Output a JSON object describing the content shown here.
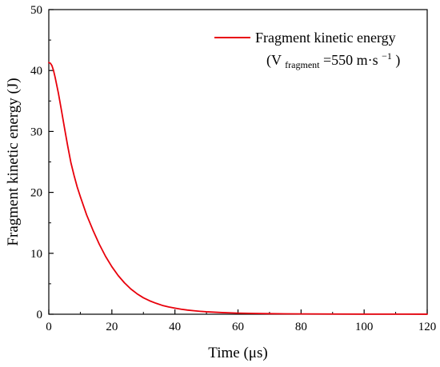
{
  "chart_data": {
    "type": "line",
    "xlabel": "Time (μs)",
    "ylabel": "Fragment kinetic energy (J)",
    "xlim": [
      0,
      120
    ],
    "ylim": [
      0,
      50
    ],
    "xticks": [
      0,
      20,
      40,
      60,
      80,
      100,
      120
    ],
    "yticks": [
      0,
      10,
      20,
      30,
      40,
      50
    ],
    "grid": false,
    "legend_position": "top-right",
    "legend": {
      "line1": "Fragment kinetic energy",
      "line2_prefix": "(V",
      "line2_subscript": "fragment",
      "line2_middle": "=550 m·s",
      "line2_superscript": "−1",
      "line2_suffix": ")"
    },
    "series": [
      {
        "name": "Fragment kinetic energy",
        "color": "#e8000b",
        "x": [
          0,
          0.5,
          1,
          1.5,
          2,
          3,
          4,
          5,
          6,
          7,
          8,
          9,
          10,
          12,
          14,
          16,
          18,
          20,
          22,
          24,
          26,
          28,
          30,
          32,
          34,
          36,
          38,
          40,
          42,
          44,
          46,
          48,
          50,
          55,
          60,
          65,
          70,
          75,
          80,
          90,
          100,
          110,
          120
        ],
        "y": [
          41.3,
          41.2,
          40.8,
          40.0,
          38.9,
          36.4,
          33.5,
          30.5,
          27.6,
          24.9,
          22.8,
          20.9,
          19.3,
          16.3,
          13.8,
          11.5,
          9.5,
          7.8,
          6.35,
          5.15,
          4.15,
          3.35,
          2.7,
          2.2,
          1.8,
          1.45,
          1.2,
          1.0,
          0.82,
          0.68,
          0.57,
          0.48,
          0.4,
          0.27,
          0.18,
          0.13,
          0.09,
          0.07,
          0.05,
          0.03,
          0.02,
          0.015,
          0.01
        ]
      }
    ]
  }
}
